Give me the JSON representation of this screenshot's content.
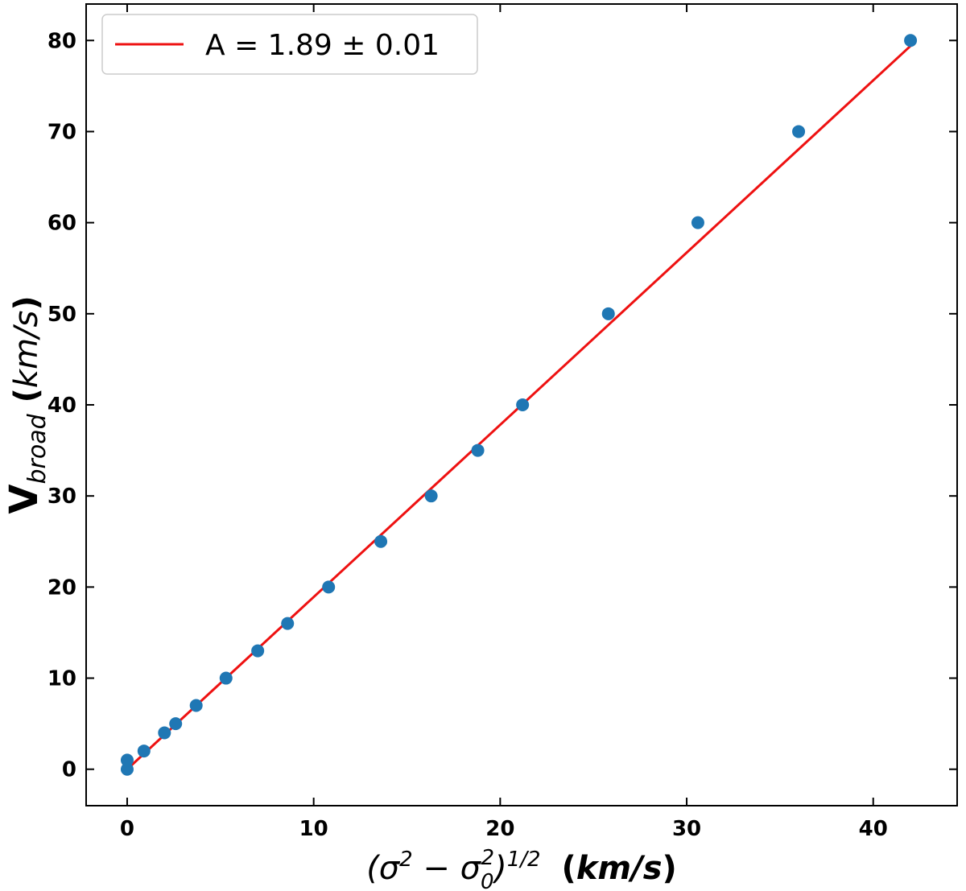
{
  "chart_data": {
    "type": "scatter",
    "xlabel": {
      "pre": "(σ",
      "sup1": "2",
      "mid": " − σ",
      "sub": "0",
      "sup2": "2",
      "post": ")",
      "sup3": "1/2",
      "units_open": "(",
      "units": "km/s",
      "units_close": ")"
    },
    "ylabel": {
      "main": "V",
      "sub": "broad",
      "units_open": "(",
      "units": "km/s",
      "units_close": ")"
    },
    "xlim": [
      -2.2,
      44.5
    ],
    "ylim": [
      -4,
      84
    ],
    "xticks": [
      0,
      10,
      20,
      30,
      40
    ],
    "yticks": [
      0,
      10,
      20,
      30,
      40,
      50,
      60,
      70,
      80
    ],
    "grid": false,
    "legend": {
      "position": "top-left",
      "label": "A = 1.89 ± 0.01"
    },
    "series": [
      {
        "kind": "points",
        "color": "#1f77b4",
        "x": [
          0,
          0,
          0.9,
          2.0,
          2.6,
          3.7,
          5.3,
          7.0,
          8.6,
          10.8,
          13.6,
          16.3,
          18.8,
          21.2,
          25.8,
          30.6,
          36.0,
          42.0
        ],
        "y": [
          0,
          1,
          2,
          4,
          5,
          7,
          10,
          13,
          16,
          20,
          25,
          30,
          35,
          40,
          50,
          60,
          70,
          80
        ]
      },
      {
        "kind": "line",
        "name": "A = 1.89 ± 0.01",
        "color": "#ee1111",
        "x": [
          0,
          42.0
        ],
        "y": [
          0,
          79.4
        ]
      }
    ]
  }
}
